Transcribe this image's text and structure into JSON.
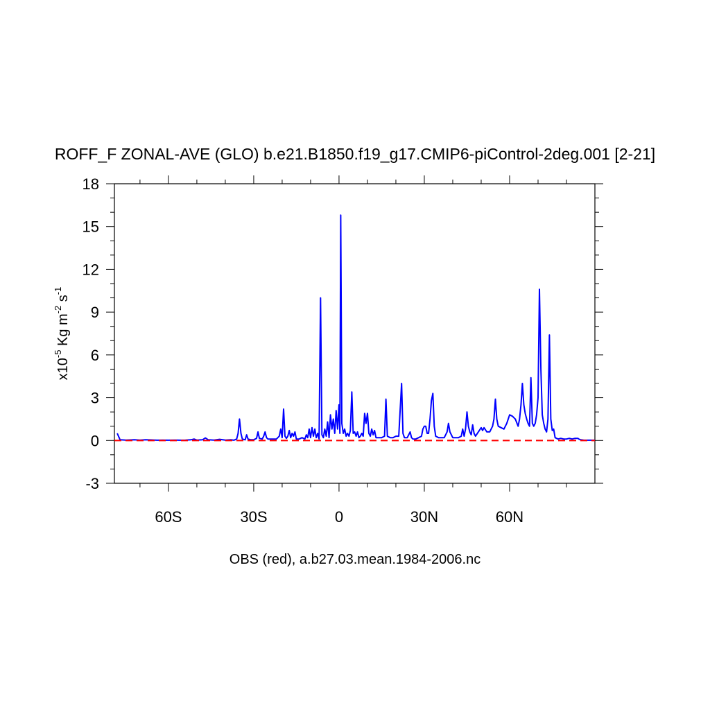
{
  "chart_data": {
    "type": "line",
    "title": "ROFF_F ZONAL-AVE (GLO) b.e21.B1850.f19_g17.CMIP6-piControl-2deg.001 [2-21]",
    "xlabel": "OBS (red), a.b27.03.mean.1984-2006.nc",
    "ylabel": {
      "prefix": "x10",
      "exp1": "-5",
      "mid": " Kg m",
      "exp2": "-2",
      "mid2": " s",
      "exp3": "-1"
    },
    "xlim": [
      -79,
      90
    ],
    "ylim": [
      -3,
      18
    ],
    "x_ticks": [
      {
        "value": -60,
        "label": "60S"
      },
      {
        "value": -30,
        "label": "30S"
      },
      {
        "value": 0,
        "label": "0"
      },
      {
        "value": 30,
        "label": "30N"
      },
      {
        "value": 60,
        "label": "60N"
      }
    ],
    "y_ticks": [
      {
        "value": -3,
        "label": "-3"
      },
      {
        "value": 0,
        "label": "0"
      },
      {
        "value": 3,
        "label": "3"
      },
      {
        "value": 6,
        "label": "6"
      },
      {
        "value": 9,
        "label": "9"
      },
      {
        "value": 12,
        "label": "12"
      },
      {
        "value": 15,
        "label": "15"
      },
      {
        "value": 18,
        "label": "18"
      }
    ],
    "series": [
      {
        "color": "#0000ff",
        "style": "solid",
        "points": [
          [
            -78,
            0.5
          ],
          [
            -77,
            0.05
          ],
          [
            -75,
            0.03
          ],
          [
            -72,
            0.05
          ],
          [
            -70,
            0.03
          ],
          [
            -68,
            0.05
          ],
          [
            -66,
            0.04
          ],
          [
            -64,
            0.02
          ],
          [
            -62,
            0.03
          ],
          [
            -60,
            0.02
          ],
          [
            -58,
            0.03
          ],
          [
            -56,
            0.02
          ],
          [
            -54,
            0.03
          ],
          [
            -52,
            0.05
          ],
          [
            -51,
            0.1
          ],
          [
            -50,
            0.03
          ],
          [
            -48,
            0.05
          ],
          [
            -47,
            0.18
          ],
          [
            -46,
            0.05
          ],
          [
            -44,
            0.03
          ],
          [
            -42,
            0.08
          ],
          [
            -40,
            0.03
          ],
          [
            -38,
            0.05
          ],
          [
            -37,
            0.02
          ],
          [
            -36,
            0.1
          ],
          [
            -35.5,
            0.5
          ],
          [
            -35,
            1.5
          ],
          [
            -34.5,
            0.5
          ],
          [
            -34,
            0.1
          ],
          [
            -33,
            0.05
          ],
          [
            -32.5,
            0.4
          ],
          [
            -32,
            0.1
          ],
          [
            -31,
            0.05
          ],
          [
            -30,
            0.05
          ],
          [
            -29,
            0.15
          ],
          [
            -28.5,
            0.6
          ],
          [
            -28,
            0.15
          ],
          [
            -27,
            0.1
          ],
          [
            -26.5,
            0.3
          ],
          [
            -26,
            0.6
          ],
          [
            -25.5,
            0.2
          ],
          [
            -25,
            0.1
          ],
          [
            -24,
            0.1
          ],
          [
            -23,
            0.1
          ],
          [
            -22,
            0.1
          ],
          [
            -21,
            0.3
          ],
          [
            -20.5,
            0.8
          ],
          [
            -20,
            0.2
          ],
          [
            -19.5,
            2.2
          ],
          [
            -19,
            0.3
          ],
          [
            -18.5,
            0.15
          ],
          [
            -18,
            0.3
          ],
          [
            -17.5,
            0.7
          ],
          [
            -17,
            0.2
          ],
          [
            -16.5,
            0.5
          ],
          [
            -16,
            0.3
          ],
          [
            -15.5,
            0.6
          ],
          [
            -15,
            0.1
          ],
          [
            -14,
            0.1
          ],
          [
            -13,
            0.2
          ],
          [
            -12,
            0.1
          ],
          [
            -11.5,
            0.4
          ],
          [
            -11,
            0.2
          ],
          [
            -10.5,
            0.8
          ],
          [
            -10,
            0.2
          ],
          [
            -9.5,
            0.9
          ],
          [
            -9,
            0.3
          ],
          [
            -8.5,
            0.8
          ],
          [
            -8,
            0.2
          ],
          [
            -7.5,
            0.5
          ],
          [
            -7,
            0.1
          ],
          [
            -6.5,
            10.0
          ],
          [
            -6,
            0.4
          ],
          [
            -5.5,
            0.2
          ],
          [
            -5,
            0.8
          ],
          [
            -4.5,
            0.3
          ],
          [
            -4,
            1.3
          ],
          [
            -3.5,
            0.2
          ],
          [
            -3,
            1.8
          ],
          [
            -2.5,
            0.8
          ],
          [
            -2,
            1.5
          ],
          [
            -1.5,
            0.5
          ],
          [
            -1,
            2.1
          ],
          [
            -0.5,
            0.8
          ],
          [
            0,
            2.5
          ],
          [
            0.3,
            0.5
          ],
          [
            0.6,
            15.8
          ],
          [
            1,
            1.2
          ],
          [
            1.5,
            0.5
          ],
          [
            2,
            0.8
          ],
          [
            2.5,
            0.3
          ],
          [
            3,
            0.5
          ],
          [
            3.5,
            0.3
          ],
          [
            4,
            0.7
          ],
          [
            4.5,
            3.4
          ],
          [
            5,
            0.5
          ],
          [
            5.5,
            0.6
          ],
          [
            6,
            0.3
          ],
          [
            6.5,
            0.6
          ],
          [
            7,
            0.2
          ],
          [
            7.5,
            0.3
          ],
          [
            8,
            0.5
          ],
          [
            8.5,
            0.3
          ],
          [
            9,
            1.9
          ],
          [
            9.5,
            1.2
          ],
          [
            10,
            1.9
          ],
          [
            10.5,
            0.5
          ],
          [
            11,
            0.3
          ],
          [
            11.5,
            0.8
          ],
          [
            12,
            0.4
          ],
          [
            12.5,
            0.7
          ],
          [
            13,
            0.2
          ],
          [
            14,
            0.2
          ],
          [
            15,
            0.2
          ],
          [
            16,
            0.3
          ],
          [
            16.5,
            2.9
          ],
          [
            17,
            0.3
          ],
          [
            18,
            0.2
          ],
          [
            19,
            0.2
          ],
          [
            20,
            0.3
          ],
          [
            21,
            0.3
          ],
          [
            22,
            4.0
          ],
          [
            22.5,
            0.5
          ],
          [
            23,
            0.2
          ],
          [
            24,
            0.2
          ],
          [
            25,
            0.6
          ],
          [
            25.5,
            0.2
          ],
          [
            26,
            0.1
          ],
          [
            27,
            0.1
          ],
          [
            28,
            0.2
          ],
          [
            29,
            0.3
          ],
          [
            29.5,
            0.8
          ],
          [
            30,
            1.0
          ],
          [
            30.5,
            1.0
          ],
          [
            31,
            0.5
          ],
          [
            31.5,
            0.5
          ],
          [
            32,
            1.5
          ],
          [
            32.5,
            2.8
          ],
          [
            33,
            3.3
          ],
          [
            33.5,
            1.0
          ],
          [
            34,
            0.3
          ],
          [
            35,
            0.2
          ],
          [
            36,
            0.2
          ],
          [
            37,
            0.2
          ],
          [
            38,
            0.6
          ],
          [
            38.5,
            1.2
          ],
          [
            39,
            0.6
          ],
          [
            40,
            0.2
          ],
          [
            41,
            0.2
          ],
          [
            42,
            0.2
          ],
          [
            43,
            0.3
          ],
          [
            43.5,
            0.8
          ],
          [
            44,
            0.3
          ],
          [
            44.5,
            0.8
          ],
          [
            45,
            2.0
          ],
          [
            45.5,
            1.0
          ],
          [
            46,
            0.6
          ],
          [
            46.5,
            0.4
          ],
          [
            47,
            1.1
          ],
          [
            47.5,
            0.5
          ],
          [
            48,
            0.3
          ],
          [
            49,
            0.6
          ],
          [
            50,
            0.9
          ],
          [
            50.5,
            0.7
          ],
          [
            51,
            0.9
          ],
          [
            52,
            0.6
          ],
          [
            53,
            0.6
          ],
          [
            54,
            1.0
          ],
          [
            54.5,
            1.5
          ],
          [
            55,
            2.9
          ],
          [
            55.5,
            1.5
          ],
          [
            56,
            1.0
          ],
          [
            57,
            0.9
          ],
          [
            58,
            0.8
          ],
          [
            59,
            1.2
          ],
          [
            60,
            1.8
          ],
          [
            61,
            1.7
          ],
          [
            62,
            1.5
          ],
          [
            63,
            1.0
          ],
          [
            63.5,
            1.5
          ],
          [
            64,
            2.5
          ],
          [
            64.5,
            4.0
          ],
          [
            65,
            2.5
          ],
          [
            65.5,
            1.9
          ],
          [
            66,
            1.5
          ],
          [
            66.5,
            1.2
          ],
          [
            67,
            1.0
          ],
          [
            67.5,
            4.4
          ],
          [
            68,
            1.2
          ],
          [
            68.5,
            1.0
          ],
          [
            69,
            1.2
          ],
          [
            69.5,
            1.8
          ],
          [
            70,
            3.0
          ],
          [
            70.5,
            10.6
          ],
          [
            71,
            5.0
          ],
          [
            71.5,
            1.8
          ],
          [
            72,
            1.2
          ],
          [
            72.5,
            0.8
          ],
          [
            73,
            0.6
          ],
          [
            73.5,
            1.5
          ],
          [
            74,
            7.4
          ],
          [
            74.5,
            1.5
          ],
          [
            75,
            0.7
          ],
          [
            75.5,
            0.8
          ],
          [
            76,
            0.2
          ],
          [
            77,
            0.1
          ],
          [
            78,
            0.15
          ],
          [
            79,
            0.1
          ],
          [
            80,
            0.1
          ],
          [
            81,
            0.15
          ],
          [
            82,
            0.1
          ],
          [
            83,
            0.15
          ],
          [
            84,
            0.15
          ],
          [
            84.5,
            0.08
          ],
          [
            85,
            0.05
          ],
          [
            86,
            0.03
          ],
          [
            87,
            0.02
          ],
          [
            88,
            0.02
          ],
          [
            89,
            0.02
          ],
          [
            90,
            0.02
          ]
        ]
      },
      {
        "color": "#ff0000",
        "style": "dashed",
        "points": [
          [
            -79,
            0.0
          ],
          [
            90,
            0.0
          ]
        ]
      }
    ]
  }
}
